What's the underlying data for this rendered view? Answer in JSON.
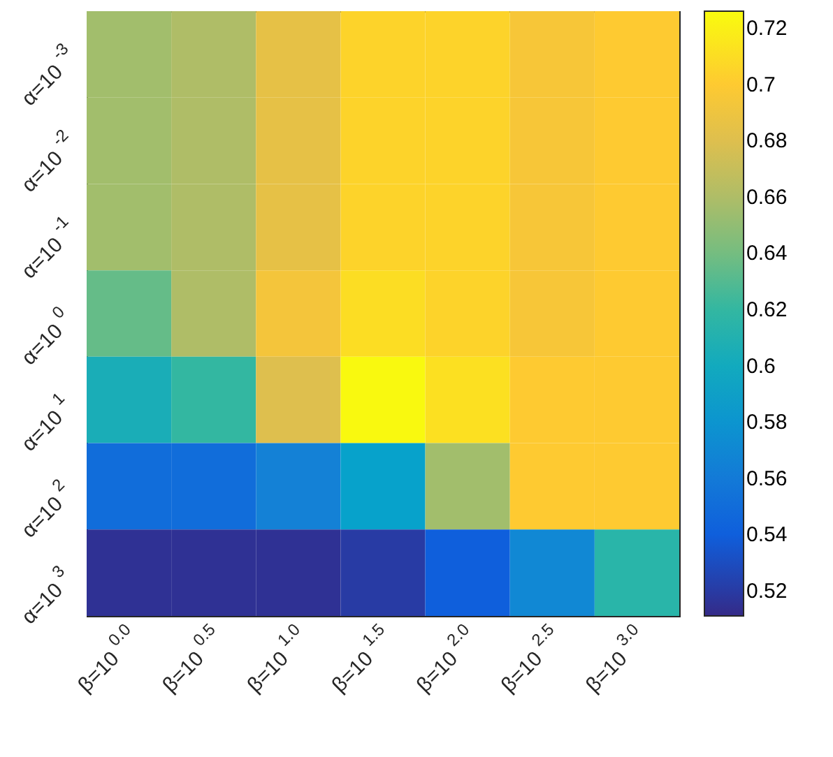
{
  "chart_data": {
    "type": "heatmap",
    "categories": [
      "β=10$^{0.0}$",
      "β=10$^{0.5}$",
      "β=10$^{1.0}$",
      "β=10$^{1.5}$",
      "β=10$^{2.0}$",
      "β=10$^{2.5}$",
      "β=10$^{3.0}$"
    ],
    "y_categories": [
      "α=10$^{-3}$",
      "α=10$^{-2}$",
      "α=10$^{-1}$",
      "α=10$^{0}$",
      "α=10$^{1}$",
      "α=10$^{2}$",
      "α=10$^{3}$"
    ],
    "cells": [
      [
        0.655,
        0.66,
        0.685,
        0.705,
        0.705,
        0.695,
        0.7
      ],
      [
        0.655,
        0.66,
        0.685,
        0.705,
        0.705,
        0.695,
        0.7
      ],
      [
        0.655,
        0.66,
        0.685,
        0.705,
        0.705,
        0.695,
        0.7
      ],
      [
        0.635,
        0.66,
        0.693,
        0.71,
        0.705,
        0.695,
        0.7
      ],
      [
        0.605,
        0.62,
        0.68,
        0.725,
        0.712,
        0.7,
        0.7
      ],
      [
        0.55,
        0.55,
        0.565,
        0.59,
        0.655,
        0.7,
        0.7
      ],
      [
        0.515,
        0.515,
        0.515,
        0.52,
        0.54,
        0.57,
        0.615
      ]
    ],
    "clim": [
      0.511,
      0.726
    ],
    "cticks": [
      0.52,
      0.54,
      0.56,
      0.58,
      0.6,
      0.62,
      0.64,
      0.66,
      0.68,
      0.7,
      0.72
    ]
  }
}
